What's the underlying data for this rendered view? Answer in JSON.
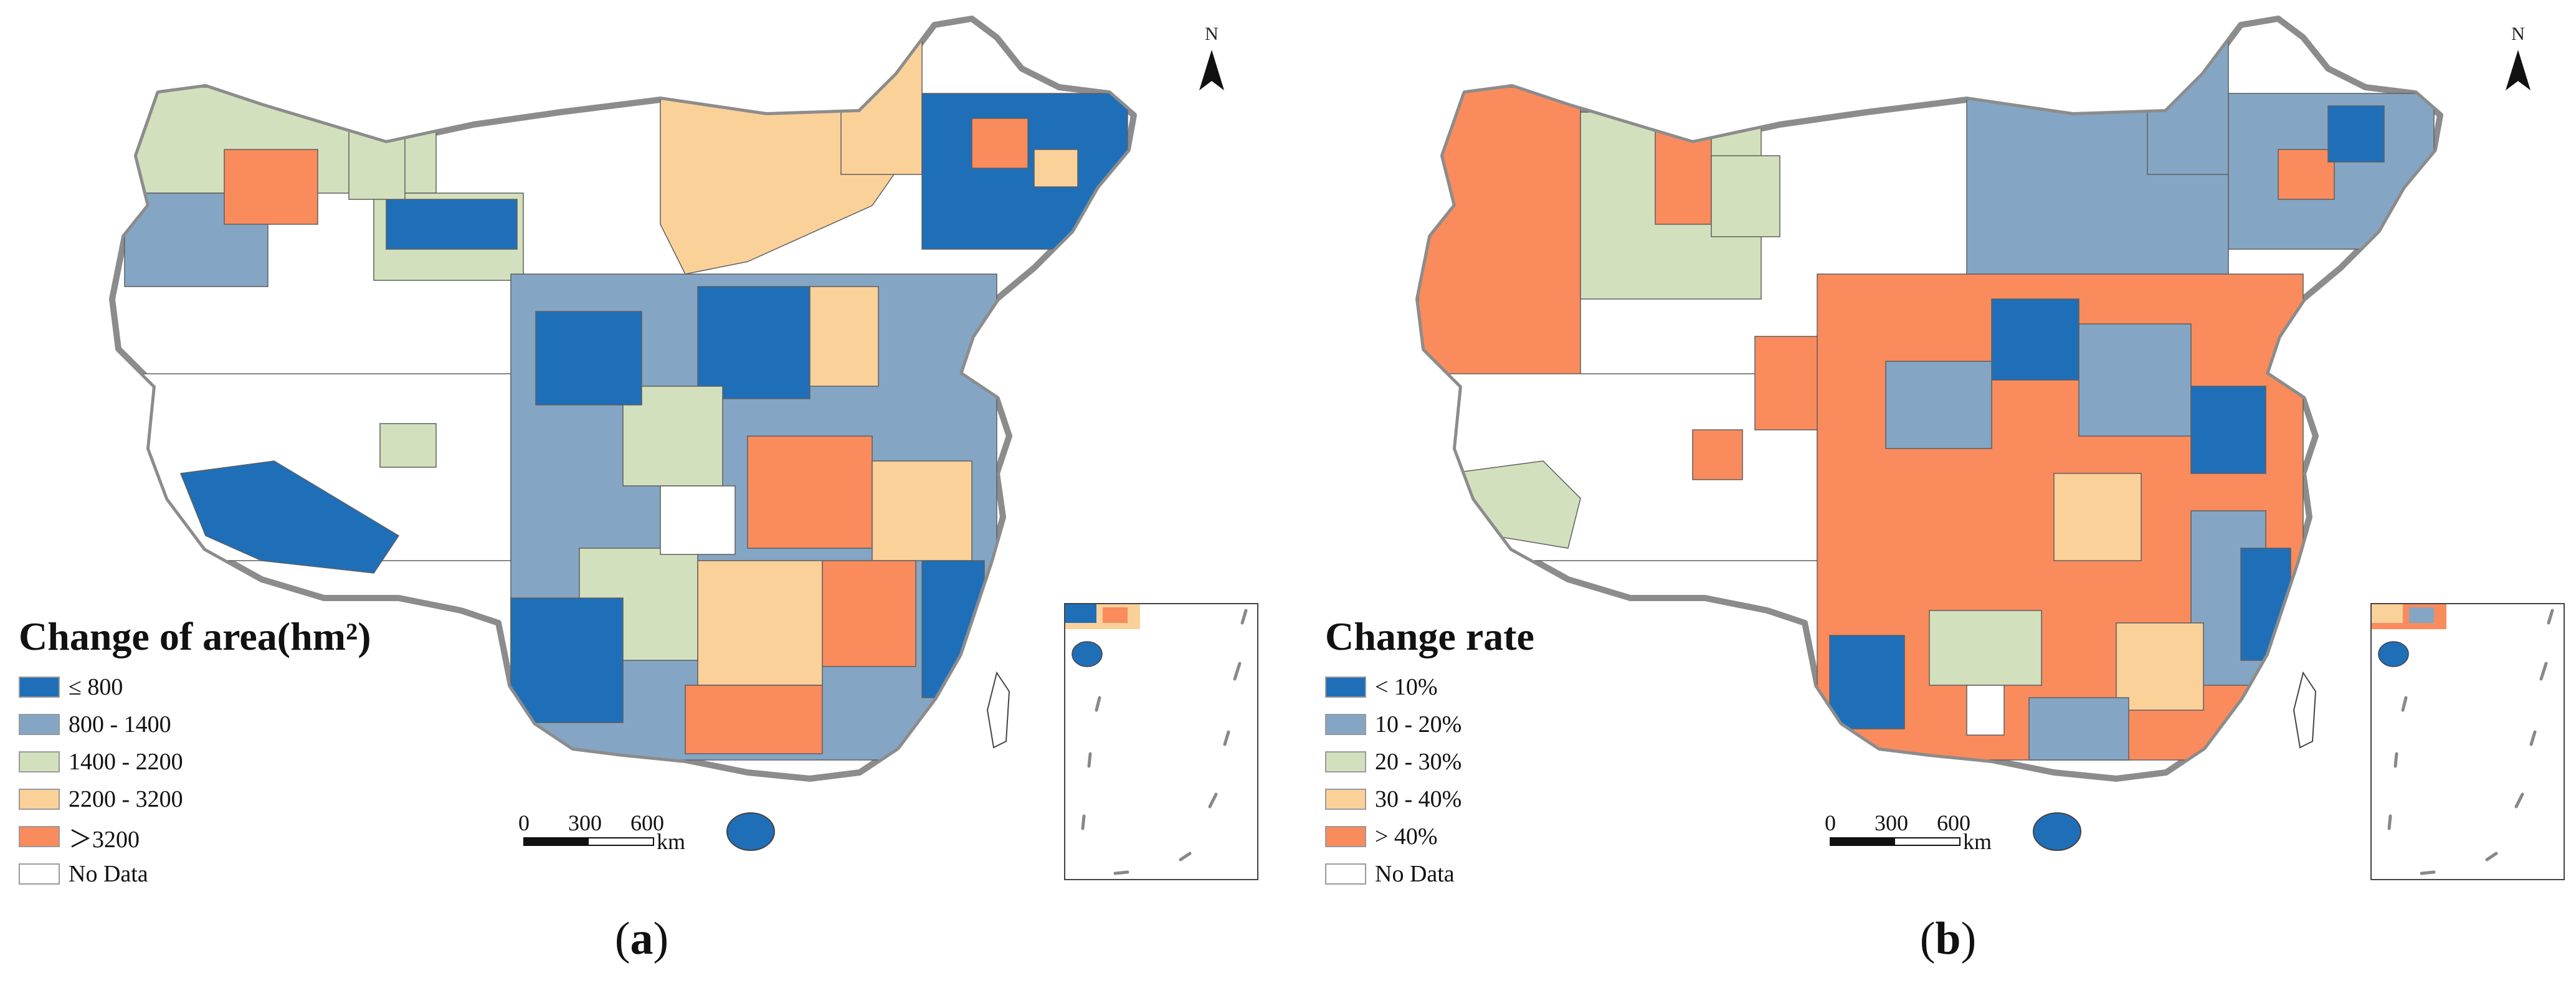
{
  "panels": [
    {
      "id": "a",
      "label_open": "(",
      "label_letter": "a",
      "label_close": ")",
      "north_label": "N",
      "legend_title": "Change of area(hm²)",
      "legend": [
        {
          "label": "≤ 800",
          "color": "#1f6fb8"
        },
        {
          "label": "800 - 1400",
          "color": "#84a6c4"
        },
        {
          "label": "1400 - 2200",
          "color": "#d3e0bd"
        },
        {
          "label": "2200 - 3200",
          "color": "#fbd19a"
        },
        {
          "label": "＞3200",
          "color": "#f98b5d"
        },
        {
          "label": "No Data",
          "color": "#ffffff"
        }
      ],
      "scale": {
        "ticks": [
          "0",
          "300",
          "600"
        ],
        "unit": "km"
      }
    },
    {
      "id": "b",
      "label_open": "(",
      "label_letter": "b",
      "label_close": ")",
      "north_label": "N",
      "legend_title": "Change rate",
      "legend": [
        {
          "label": "< 10%",
          "color": "#1f6fb8"
        },
        {
          "label": "10 - 20%",
          "color": "#84a6c4"
        },
        {
          "label": "20 - 30%",
          "color": "#d3e0bd"
        },
        {
          "label": "30 - 40%",
          "color": "#fbd19a"
        },
        {
          "label": "> 40%",
          "color": "#f98b5d"
        },
        {
          "label": "No Data",
          "color": "#ffffff"
        }
      ],
      "scale": {
        "ticks": [
          "0",
          "300",
          "600"
        ],
        "unit": "km"
      }
    }
  ]
}
